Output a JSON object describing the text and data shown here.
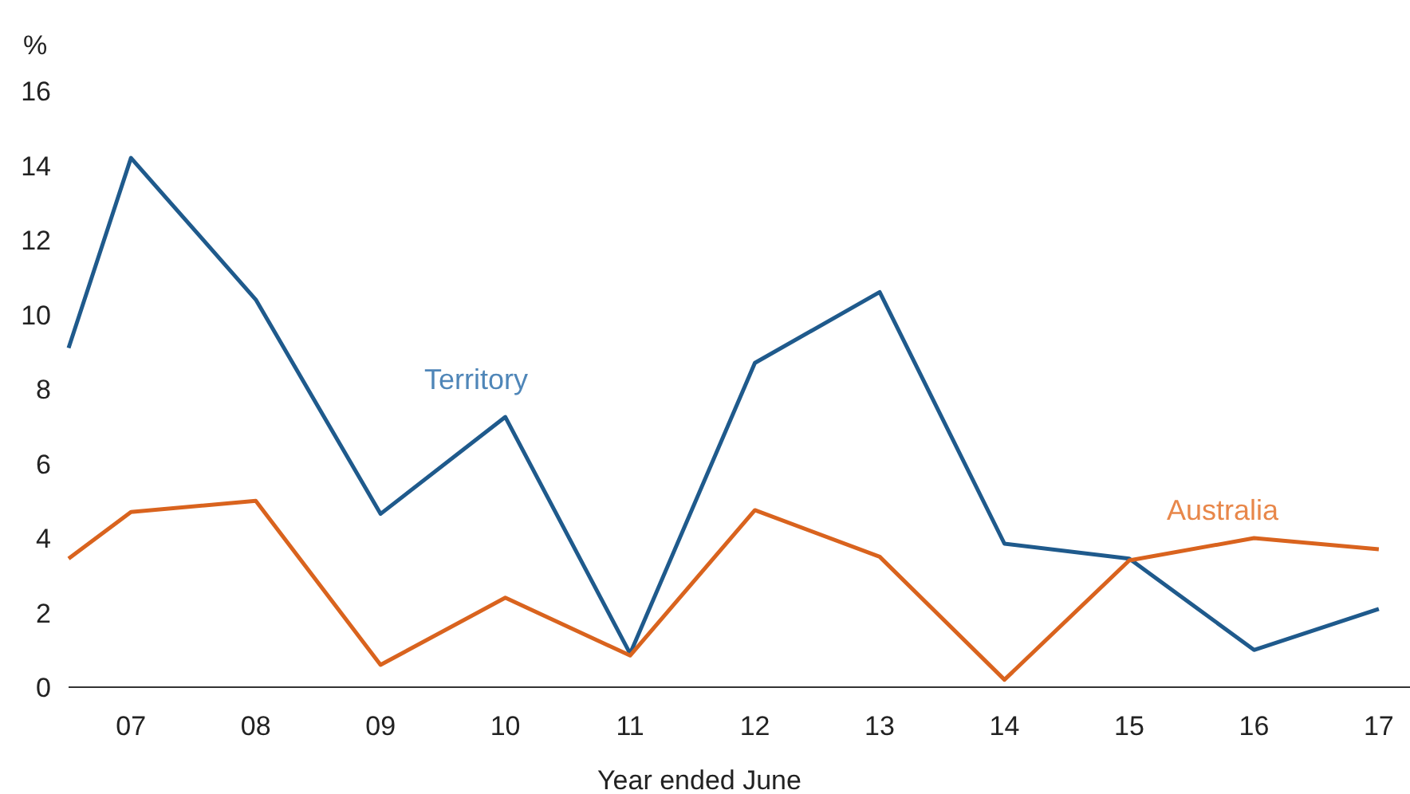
{
  "chart_data": {
    "type": "line",
    "ylabel": "%",
    "xlabel": "Year ended June",
    "x": [
      6.5,
      7,
      8,
      9,
      10,
      11,
      12,
      13,
      14,
      15,
      16,
      17
    ],
    "xlim": [
      6.5,
      17.25
    ],
    "xticks": [
      {
        "value": 7,
        "label": "07"
      },
      {
        "value": 8,
        "label": "08"
      },
      {
        "value": 9,
        "label": "09"
      },
      {
        "value": 10,
        "label": "10"
      },
      {
        "value": 11,
        "label": "11"
      },
      {
        "value": 12,
        "label": "12"
      },
      {
        "value": 13,
        "label": "13"
      },
      {
        "value": 14,
        "label": "14"
      },
      {
        "value": 15,
        "label": "15"
      },
      {
        "value": 16,
        "label": "16"
      },
      {
        "value": 17,
        "label": "17"
      }
    ],
    "ylim": [
      0,
      16
    ],
    "yticks": [
      0,
      2,
      4,
      6,
      8,
      10,
      12,
      14,
      16
    ],
    "grid": false,
    "marker": "none",
    "line_style": "solid",
    "series": [
      {
        "name": "Territory",
        "color": "#1f5a8c",
        "values": [
          9.1,
          14.2,
          10.4,
          4.65,
          7.25,
          0.9,
          8.7,
          10.6,
          3.85,
          3.45,
          1.0,
          2.1
        ]
      },
      {
        "name": "Australia",
        "color": "#d9631e",
        "values": [
          3.45,
          4.7,
          5.0,
          0.6,
          2.4,
          0.85,
          4.75,
          3.5,
          0.2,
          3.4,
          4.0,
          3.7
        ]
      }
    ]
  }
}
